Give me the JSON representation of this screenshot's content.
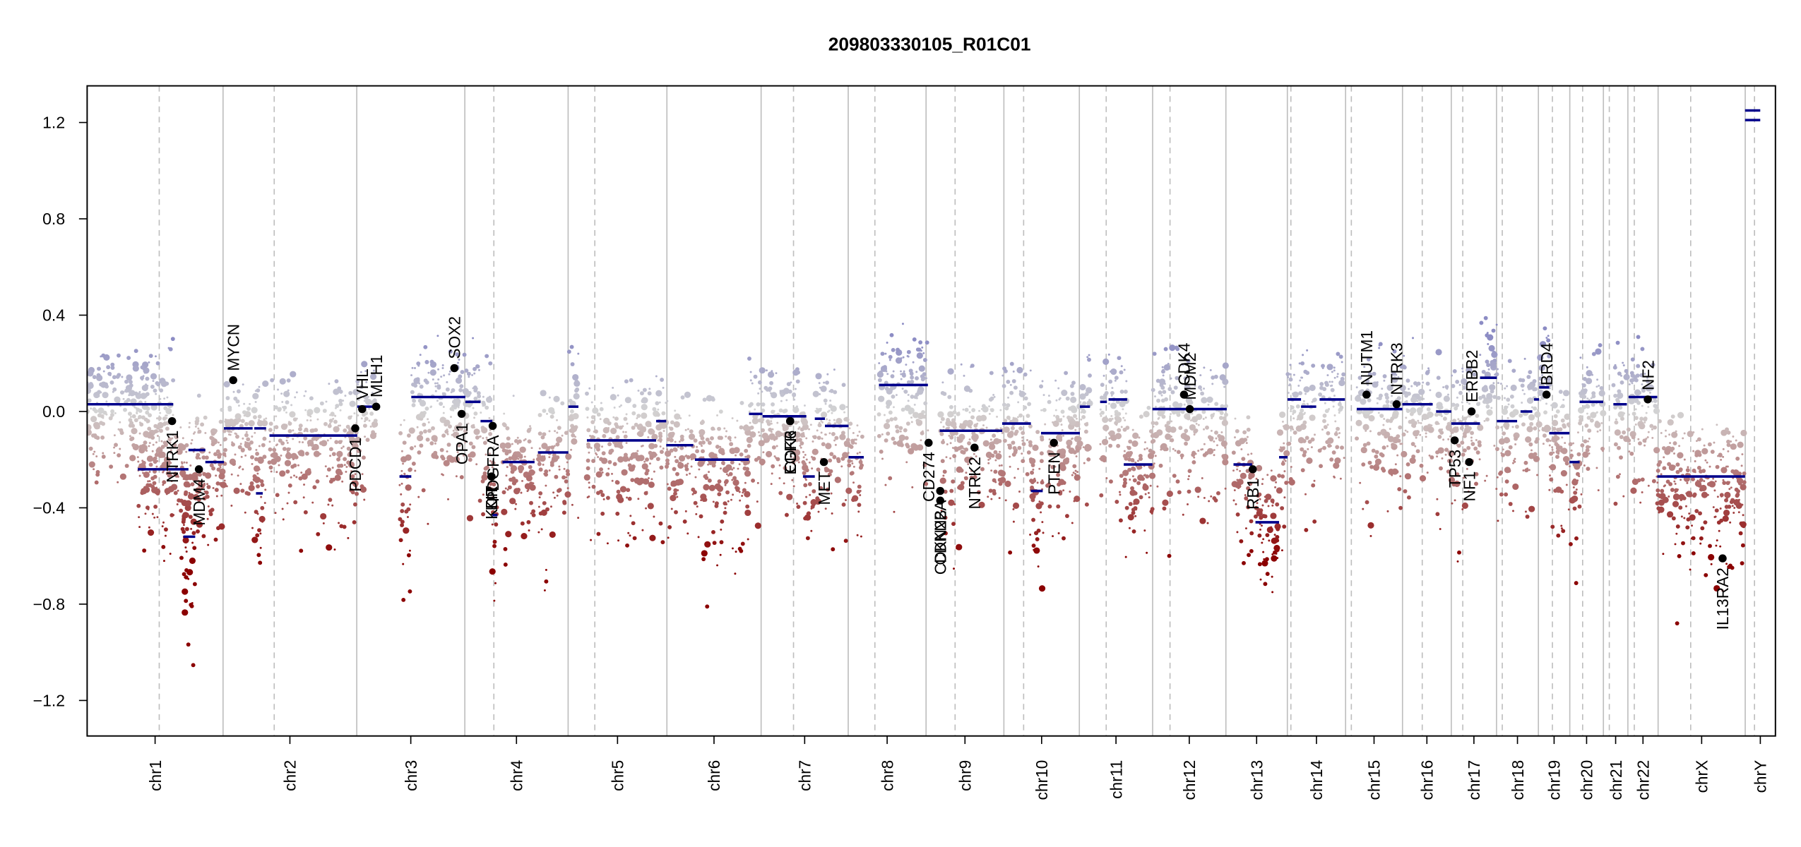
{
  "chart_data": {
    "type": "scatter",
    "title": "209803330105_R01C01",
    "xlabel": "",
    "ylabel": "",
    "ylim": [
      -1.35,
      1.35
    ],
    "yticks": [
      -1.2,
      -0.8,
      -0.4,
      0.0,
      0.4,
      0.8,
      1.2
    ],
    "ytick_labels": [
      "−1.2",
      "−0.8",
      "−0.4",
      "0.0",
      "0.4",
      "0.8",
      "1.2"
    ],
    "grid": false,
    "legend": "none",
    "colors": {
      "gain": "#8c8cc4",
      "neutral": "#d3d3d3",
      "loss": "#8b0000",
      "segment": "#00008b",
      "gene_point": "#000000",
      "chrom_boundary": "#bebebe",
      "centromere": "#bebebe"
    },
    "chromosomes": [
      {
        "name": "chr1",
        "rel_start": 0.0,
        "rel_end": 0.0805,
        "centromere": 0.0427
      },
      {
        "name": "chr2",
        "rel_start": 0.0805,
        "rel_end": 0.1597,
        "centromere": 0.1108
      },
      {
        "name": "chr3",
        "rel_start": 0.1597,
        "rel_end": 0.2237,
        "centromere": 0.2237
      },
      {
        "name": "chr4",
        "rel_start": 0.2237,
        "rel_end": 0.2849,
        "centromere": 0.2409
      },
      {
        "name": "chr5",
        "rel_start": 0.2849,
        "rel_end": 0.3434,
        "centromere": 0.3007
      },
      {
        "name": "chr6",
        "rel_start": 0.3434,
        "rel_end": 0.3992,
        "centromere": 0.3434
      },
      {
        "name": "chr7",
        "rel_start": 0.3992,
        "rel_end": 0.4508,
        "centromere": 0.4184
      },
      {
        "name": "chr8",
        "rel_start": 0.4508,
        "rel_end": 0.4969,
        "centromere": 0.4666
      },
      {
        "name": "chr9",
        "rel_start": 0.4969,
        "rel_end": 0.543,
        "centromere": 0.5141
      },
      {
        "name": "chr10",
        "rel_start": 0.543,
        "rel_end": 0.5877,
        "centromere": 0.5547
      },
      {
        "name": "chr11",
        "rel_start": 0.5877,
        "rel_end": 0.6311,
        "centromere": 0.6036
      },
      {
        "name": "chr12",
        "rel_start": 0.6311,
        "rel_end": 0.6745,
        "centromere": 0.6414
      },
      {
        "name": "chr13",
        "rel_start": 0.6745,
        "rel_end": 0.7109,
        "centromere": 0.6745
      },
      {
        "name": "chr14",
        "rel_start": 0.7109,
        "rel_end": 0.7454,
        "centromere": 0.713
      },
      {
        "name": "chr15",
        "rel_start": 0.7454,
        "rel_end": 0.7791,
        "centromere": 0.7488
      },
      {
        "name": "chr16",
        "rel_start": 0.7791,
        "rel_end": 0.808,
        "centromere": 0.7908
      },
      {
        "name": "chr17",
        "rel_start": 0.808,
        "rel_end": 0.8348,
        "centromere": 0.8148
      },
      {
        "name": "chr18",
        "rel_start": 0.8348,
        "rel_end": 0.8596,
        "centromere": 0.8382
      },
      {
        "name": "chr19",
        "rel_start": 0.8596,
        "rel_end": 0.8782,
        "centromere": 0.8679
      },
      {
        "name": "chr20",
        "rel_start": 0.8782,
        "rel_end": 0.8981,
        "centromere": 0.8858
      },
      {
        "name": "chr21",
        "rel_start": 0.8981,
        "rel_end": 0.9126,
        "centromere": 0.9016
      },
      {
        "name": "chr22",
        "rel_start": 0.9126,
        "rel_end": 0.9305,
        "centromere": 0.9164
      },
      {
        "name": "chrX",
        "rel_start": 0.9305,
        "rel_end": 0.9821,
        "centromere": 0.9498
      },
      {
        "name": "chrY",
        "rel_start": 0.9821,
        "rel_end": 1.0,
        "centromere": 0.9876
      }
    ],
    "segments": [
      {
        "chrom": "chr1",
        "x0": 0.0,
        "x1": 0.051,
        "y": 0.03
      },
      {
        "chrom": "chr1",
        "x0": 0.03,
        "x1": 0.06,
        "y": -0.24
      },
      {
        "chrom": "chr1",
        "x0": 0.06,
        "x1": 0.07,
        "y": -0.16
      },
      {
        "chrom": "chr1",
        "x0": 0.057,
        "x1": 0.064,
        "y": -0.52
      },
      {
        "chrom": "chr1",
        "x0": 0.07,
        "x1": 0.081,
        "y": -0.21
      },
      {
        "chrom": "chr2",
        "x0": 0.081,
        "x1": 0.098,
        "y": -0.07
      },
      {
        "chrom": "chr2",
        "x0": 0.099,
        "x1": 0.106,
        "y": -0.07
      },
      {
        "chrom": "chr2",
        "x0": 0.108,
        "x1": 0.16,
        "y": -0.1
      },
      {
        "chrom": "chr2",
        "x0": 0.1,
        "x1": 0.104,
        "y": -0.34
      },
      {
        "chrom": "chr3",
        "x0": 0.16,
        "x1": 0.171,
        "y": 0.02
      },
      {
        "chrom": "chr3",
        "x0": 0.185,
        "x1": 0.192,
        "y": -0.27
      },
      {
        "chrom": "chr3",
        "x0": 0.192,
        "x1": 0.224,
        "y": 0.06
      },
      {
        "chrom": "chr3",
        "x0": 0.224,
        "x1": 0.233,
        "y": 0.04
      },
      {
        "chrom": "chr4",
        "x0": 0.233,
        "x1": 0.24,
        "y": -0.04
      },
      {
        "chrom": "chr4",
        "x0": 0.246,
        "x1": 0.265,
        "y": -0.21
      },
      {
        "chrom": "chr4",
        "x0": 0.267,
        "x1": 0.285,
        "y": -0.17
      },
      {
        "chrom": "chr4",
        "x0": 0.24,
        "x1": 0.243,
        "y": -0.43
      },
      {
        "chrom": "chr5",
        "x0": 0.285,
        "x1": 0.291,
        "y": 0.02
      },
      {
        "chrom": "chr5",
        "x0": 0.296,
        "x1": 0.337,
        "y": -0.12
      },
      {
        "chrom": "chr5",
        "x0": 0.337,
        "x1": 0.343,
        "y": -0.04
      },
      {
        "chrom": "chr6",
        "x0": 0.343,
        "x1": 0.359,
        "y": -0.14
      },
      {
        "chrom": "chr6",
        "x0": 0.36,
        "x1": 0.392,
        "y": -0.2
      },
      {
        "chrom": "chr7",
        "x0": 0.392,
        "x1": 0.4,
        "y": -0.01
      },
      {
        "chrom": "chr7",
        "x0": 0.4,
        "x1": 0.426,
        "y": -0.02
      },
      {
        "chrom": "chr7",
        "x0": 0.424,
        "x1": 0.431,
        "y": -0.27
      },
      {
        "chrom": "chr7",
        "x0": 0.431,
        "x1": 0.437,
        "y": -0.03
      },
      {
        "chrom": "chr7",
        "x0": 0.437,
        "x1": 0.451,
        "y": -0.06
      },
      {
        "chrom": "chr7",
        "x0": 0.451,
        "x1": 0.46,
        "y": -0.19
      },
      {
        "chrom": "chr8",
        "x0": 0.469,
        "x1": 0.498,
        "y": 0.11
      },
      {
        "chrom": "chr9",
        "x0": 0.505,
        "x1": 0.542,
        "y": -0.08
      },
      {
        "chrom": "chr9",
        "x0": 0.542,
        "x1": 0.559,
        "y": -0.05
      },
      {
        "chrom": "chr10",
        "x0": 0.565,
        "x1": 0.588,
        "y": -0.09
      },
      {
        "chrom": "chr10",
        "x0": 0.559,
        "x1": 0.566,
        "y": -0.33
      },
      {
        "chrom": "chr11",
        "x0": 0.588,
        "x1": 0.594,
        "y": 0.02
      },
      {
        "chrom": "chr11",
        "x0": 0.6,
        "x1": 0.604,
        "y": 0.04
      },
      {
        "chrom": "chr11",
        "x0": 0.605,
        "x1": 0.616,
        "y": 0.05
      },
      {
        "chrom": "chr11",
        "x0": 0.614,
        "x1": 0.631,
        "y": -0.22
      },
      {
        "chrom": "chr12",
        "x0": 0.631,
        "x1": 0.675,
        "y": 0.01
      },
      {
        "chrom": "chr13",
        "x0": 0.679,
        "x1": 0.69,
        "y": -0.22
      },
      {
        "chrom": "chr13",
        "x0": 0.692,
        "x1": 0.706,
        "y": -0.46
      },
      {
        "chrom": "chr13",
        "x0": 0.706,
        "x1": 0.711,
        "y": -0.19
      },
      {
        "chrom": "chr14",
        "x0": 0.711,
        "x1": 0.719,
        "y": 0.05
      },
      {
        "chrom": "chr14",
        "x0": 0.719,
        "x1": 0.728,
        "y": 0.02
      },
      {
        "chrom": "chr14",
        "x0": 0.73,
        "x1": 0.745,
        "y": 0.05
      },
      {
        "chrom": "chr15",
        "x0": 0.752,
        "x1": 0.779,
        "y": 0.01
      },
      {
        "chrom": "chr16",
        "x0": 0.779,
        "x1": 0.797,
        "y": 0.03
      },
      {
        "chrom": "chr16",
        "x0": 0.799,
        "x1": 0.808,
        "y": 0.0
      },
      {
        "chrom": "chr17",
        "x0": 0.808,
        "x1": 0.825,
        "y": -0.05
      },
      {
        "chrom": "chr17",
        "x0": 0.825,
        "x1": 0.835,
        "y": 0.14
      },
      {
        "chrom": "chr18",
        "x0": 0.835,
        "x1": 0.847,
        "y": -0.04
      },
      {
        "chrom": "chr18",
        "x0": 0.849,
        "x1": 0.856,
        "y": 0.0
      },
      {
        "chrom": "chr19",
        "x0": 0.857,
        "x1": 0.86,
        "y": 0.05
      },
      {
        "chrom": "chr19",
        "x0": 0.86,
        "x1": 0.866,
        "y": 0.1
      },
      {
        "chrom": "chr19",
        "x0": 0.866,
        "x1": 0.878,
        "y": -0.09
      },
      {
        "chrom": "chr20",
        "x0": 0.878,
        "x1": 0.884,
        "y": -0.21
      },
      {
        "chrom": "chr20",
        "x0": 0.884,
        "x1": 0.898,
        "y": 0.04
      },
      {
        "chrom": "chr21",
        "x0": 0.904,
        "x1": 0.912,
        "y": 0.03
      },
      {
        "chrom": "chr22",
        "x0": 0.913,
        "x1": 0.93,
        "y": 0.06
      },
      {
        "chrom": "chrX",
        "x0": 0.93,
        "x1": 0.982,
        "y": -0.27
      },
      {
        "chrom": "chrY",
        "x0": 0.982,
        "x1": 0.991,
        "y": 1.25
      },
      {
        "chrom": "chrY",
        "x0": 0.982,
        "x1": 0.991,
        "y": 1.21
      }
    ],
    "genes": [
      {
        "name": "NTRK1",
        "x": 0.0503,
        "y": -0.04
      },
      {
        "name": "MDM4",
        "x": 0.0662,
        "y": -0.24
      },
      {
        "name": "MYCN",
        "x": 0.0865,
        "y": 0.13
      },
      {
        "name": "PDCD1",
        "x": 0.1588,
        "y": -0.07
      },
      {
        "name": "VHL",
        "x": 0.1629,
        "y": 0.01
      },
      {
        "name": "MLH1",
        "x": 0.1712,
        "y": 0.02
      },
      {
        "name": "SOX2",
        "x": 0.2175,
        "y": 0.18
      },
      {
        "name": "OPA1",
        "x": 0.2218,
        "y": -0.01
      },
      {
        "name": "PDGFRA",
        "x": 0.2402,
        "y": -0.06
      },
      {
        "name": "KIT",
        "x": 0.2395,
        "y": -0.27
      },
      {
        "name": "KDR",
        "x": 0.2395,
        "y": -0.27
      },
      {
        "name": "EGFR",
        "x": 0.4164,
        "y": -0.04
      },
      {
        "name": "CDK6",
        "x": 0.4164,
        "y": -0.04
      },
      {
        "name": "MET",
        "x": 0.4364,
        "y": -0.21
      },
      {
        "name": "CD274",
        "x": 0.4984,
        "y": -0.13
      },
      {
        "name": "CDKN2A",
        "x": 0.5053,
        "y": -0.33
      },
      {
        "name": "CDKN2B",
        "x": 0.5053,
        "y": -0.37
      },
      {
        "name": "NTRK2",
        "x": 0.5256,
        "y": -0.15
      },
      {
        "name": "PTEN",
        "x": 0.5726,
        "y": -0.13
      },
      {
        "name": "CDK4",
        "x": 0.6497,
        "y": 0.07
      },
      {
        "name": "MDM2",
        "x": 0.6531,
        "y": 0.01
      },
      {
        "name": "RB1",
        "x": 0.6904,
        "y": -0.24
      },
      {
        "name": "NUTM1",
        "x": 0.7578,
        "y": 0.07
      },
      {
        "name": "NTRK3",
        "x": 0.7756,
        "y": 0.03
      },
      {
        "name": "TP53",
        "x": 0.81,
        "y": -0.12
      },
      {
        "name": "NF1",
        "x": 0.8186,
        "y": -0.21
      },
      {
        "name": "ERBB2",
        "x": 0.82,
        "y": 0.0
      },
      {
        "name": "BRD4",
        "x": 0.8644,
        "y": 0.07
      },
      {
        "name": "NF2",
        "x": 0.9244,
        "y": 0.05
      },
      {
        "name": "IL13RA2",
        "x": 0.9687,
        "y": -0.61
      }
    ],
    "probe_density_note": "probe-level scatter rendered procedurally (thousands of small points colored blue-gray for gain, red for loss)"
  }
}
